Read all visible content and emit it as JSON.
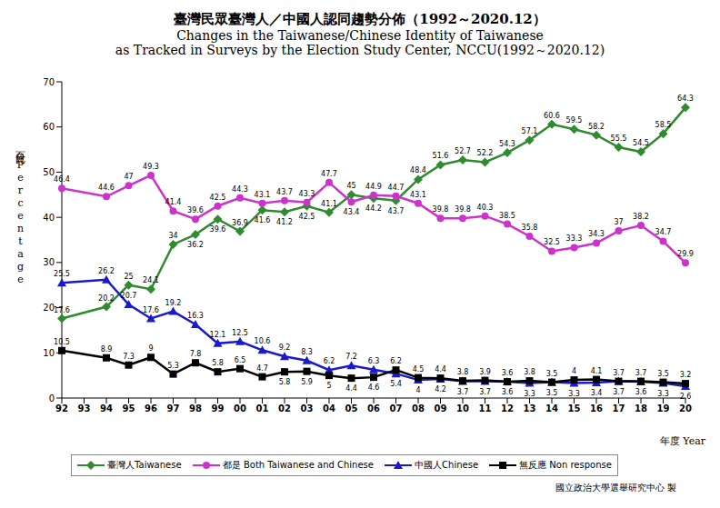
{
  "chart_data": {
    "type": "line",
    "title": "臺灣民眾臺灣人／中國人認同趨勢分佈（1992～2020.12）",
    "subtitle": [
      "Changes in the Taiwanese/Chinese Identity of Taiwanese",
      "as Tracked in Surveys by the Election Study Center, NCCU(1992～2020.12)"
    ],
    "y_label": "百分比 Percentage",
    "x_label": "年度 Year",
    "source": "國立政治大學選舉研究中心 製",
    "categories": [
      "92",
      "93",
      "94",
      "95",
      "96",
      "97",
      "98",
      "99",
      "00",
      "01",
      "02",
      "03",
      "04",
      "05",
      "06",
      "07",
      "08",
      "09",
      "10",
      "11",
      "12",
      "13",
      "14",
      "15",
      "16",
      "17",
      "18",
      "19",
      "20"
    ],
    "ylim": [
      0,
      70
    ],
    "yticks": [
      0,
      10,
      20,
      30,
      40,
      50,
      60,
      70
    ],
    "grid": false,
    "legend": "bottom",
    "data_labels": true,
    "series": [
      {
        "name": "臺灣人Taiwanese",
        "color": "#2e8b2e",
        "marker": "diamond",
        "values": [
          17.6,
          null,
          20.2,
          25.0,
          24.1,
          34.0,
          36.2,
          39.6,
          36.9,
          41.6,
          41.2,
          42.5,
          41.1,
          45.0,
          44.2,
          43.7,
          48.4,
          51.6,
          52.7,
          52.2,
          54.3,
          57.1,
          60.6,
          59.5,
          58.2,
          55.5,
          54.5,
          58.5,
          64.3
        ]
      },
      {
        "name": "都是 Both Taiwanese and Chinese",
        "color": "#cc33cc",
        "marker": "circle",
        "values": [
          46.4,
          null,
          44.6,
          47.0,
          49.3,
          41.4,
          39.6,
          42.5,
          44.3,
          43.1,
          43.7,
          43.3,
          47.7,
          43.4,
          44.9,
          44.7,
          43.1,
          39.8,
          39.8,
          40.3,
          38.5,
          35.8,
          32.5,
          33.3,
          34.3,
          37.0,
          38.2,
          34.7,
          29.9
        ]
      },
      {
        "name": "中國人Chinese",
        "color": "#1a1acc",
        "marker": "triangle",
        "values": [
          25.5,
          null,
          26.2,
          20.7,
          17.6,
          19.2,
          16.3,
          12.1,
          12.5,
          10.6,
          9.2,
          8.3,
          6.2,
          7.2,
          6.3,
          5.4,
          4.0,
          4.2,
          3.7,
          3.7,
          3.6,
          3.3,
          3.5,
          3.3,
          3.4,
          3.7,
          3.6,
          3.3,
          2.6
        ]
      },
      {
        "name": "無反應 Non response",
        "color": "#000000",
        "marker": "square",
        "values": [
          10.5,
          null,
          8.9,
          7.3,
          9.0,
          5.3,
          7.8,
          5.8,
          6.5,
          4.7,
          5.8,
          5.9,
          5.0,
          4.4,
          4.6,
          6.2,
          4.5,
          4.4,
          3.8,
          3.9,
          3.6,
          3.8,
          3.5,
          4.0,
          4.1,
          3.7,
          3.7,
          3.5,
          3.2
        ]
      }
    ]
  }
}
